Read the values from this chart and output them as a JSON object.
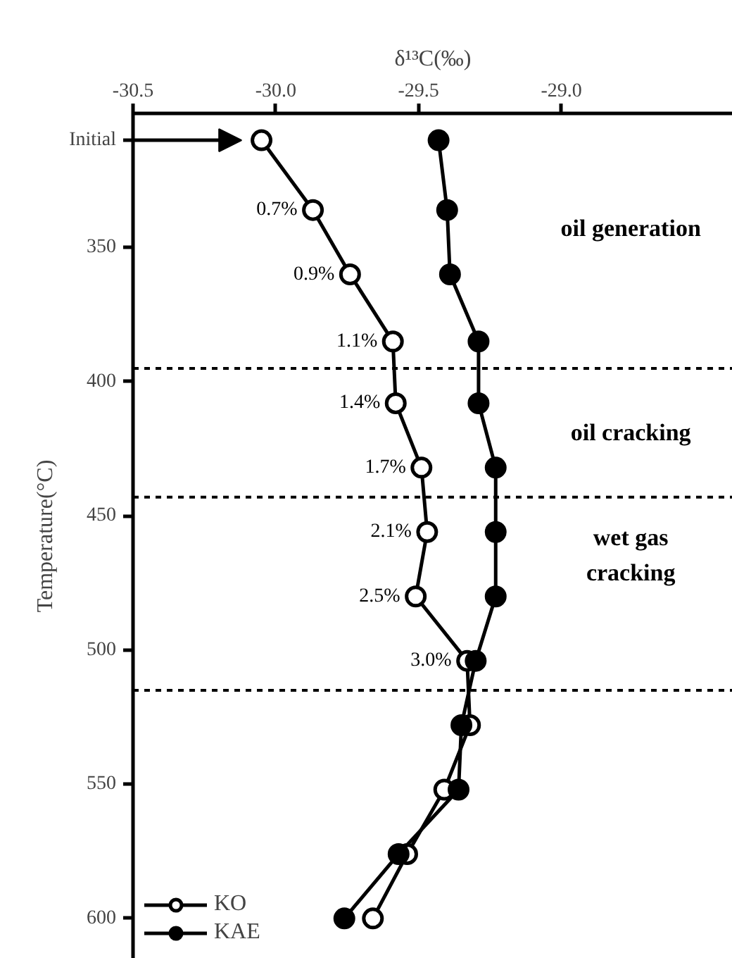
{
  "chart_data": {
    "type": "line",
    "xlabel": "δ¹³C(‰)",
    "ylabel": "Temperature(°C)",
    "xlim": [
      -30.5,
      -28.4
    ],
    "xticks": [
      {
        "value": -30.5,
        "label": "-30.5"
      },
      {
        "value": -30.0,
        "label": "-30.0"
      },
      {
        "value": -29.5,
        "label": "-29.5"
      },
      {
        "value": -29.0,
        "label": "-29.0"
      }
    ],
    "ylim": [
      615,
      300
    ],
    "yticks": [
      {
        "value": 310,
        "label": "Initial"
      },
      350,
      400,
      450,
      500,
      550,
      600
    ],
    "grid": false,
    "legend": "bottom left",
    "line_style": "solid",
    "series": [
      {
        "name": "KO",
        "color": "#000000",
        "marker": "circle_open",
        "x": [
          -30.05,
          -29.87,
          -29.74,
          -29.59,
          -29.58,
          -29.49,
          -29.47,
          -29.51,
          -29.33,
          -29.32,
          -29.41,
          -29.54,
          -29.66
        ],
        "values": [
          310,
          336,
          360,
          385,
          408,
          432,
          456,
          480,
          504,
          528,
          552,
          576,
          600
        ]
      },
      {
        "name": "KAE",
        "color": "#000000",
        "marker": "circle",
        "x": [
          -29.43,
          -29.4,
          -29.39,
          -29.29,
          -29.29,
          -29.23,
          -29.23,
          -29.23,
          -29.3,
          -29.35,
          -29.36,
          -29.57,
          -29.76
        ],
        "values": [
          310,
          336,
          360,
          385,
          408,
          432,
          456,
          480,
          504,
          528,
          552,
          576,
          600
        ]
      }
    ],
    "ref_lines": [
      {
        "axis": "y",
        "value": 395,
        "line_style": "dashed",
        "color": "#000000"
      },
      {
        "axis": "y",
        "value": 443,
        "line_style": "dashed",
        "color": "#000000"
      },
      {
        "axis": "y",
        "value": 515,
        "line_style": "dashed",
        "color": "#000000"
      }
    ],
    "annotations": [
      {
        "text": "0.7%",
        "x": -29.87,
        "y": 336
      },
      {
        "text": "0.9%",
        "x": -29.74,
        "y": 360
      },
      {
        "text": "1.1%",
        "x": -29.59,
        "y": 385
      },
      {
        "text": "1.4%",
        "x": -29.58,
        "y": 408
      },
      {
        "text": "1.7%",
        "x": -29.49,
        "y": 432
      },
      {
        "text": "2.1%",
        "x": -29.47,
        "y": 456
      },
      {
        "text": "2.5%",
        "x": -29.51,
        "y": 480
      },
      {
        "text": "3.0%",
        "x": -29.33,
        "y": 504
      },
      "oil generation",
      "oil cracking",
      "wet gas\ncracking"
    ]
  }
}
